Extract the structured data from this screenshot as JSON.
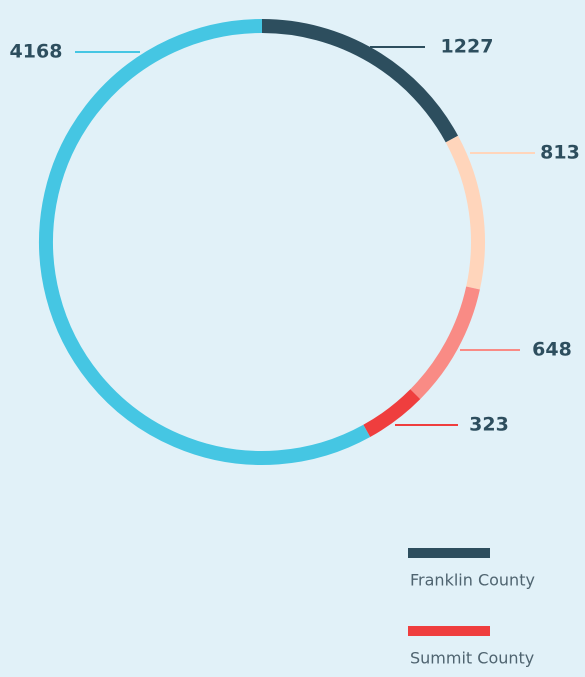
{
  "chart_data": {
    "type": "donut",
    "categories": [
      "Franklin County",
      null,
      null,
      "Summit County",
      null
    ],
    "values": [
      1227,
      813,
      648,
      323,
      4168
    ],
    "colors": [
      "#2d4e5e",
      "#ffd5bb",
      "#f98b85",
      "#ef3e3e",
      "#45c6e3"
    ]
  }
}
